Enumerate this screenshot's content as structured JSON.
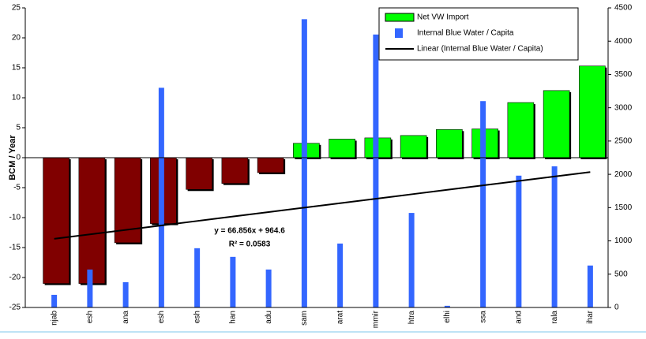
{
  "chart_data": {
    "type": "bar",
    "y_label": "BCM / Year",
    "categories": [
      "njab",
      "esh",
      "ana",
      "esh",
      "esh",
      "han",
      "adu",
      "sam",
      "arat",
      "mmir",
      "htra",
      "elhi",
      "ssa",
      "and",
      "rala",
      "ihar"
    ],
    "series": [
      {
        "name": "Net VW Import",
        "color": "#00ff00",
        "negative_color": "#800000",
        "values": [
          -21,
          -21,
          -14.2,
          -11,
          -5.3,
          -4.3,
          -2.5,
          2.4,
          3.1,
          3.3,
          3.7,
          4.7,
          4.8,
          9.2,
          11.2,
          15.3
        ]
      },
      {
        "name": "Internal Blue Water / Capita",
        "color": "#3366ff",
        "axis": "y2",
        "values": [
          190,
          570,
          380,
          3300,
          890,
          760,
          570,
          4330,
          960,
          4100,
          1420,
          25,
          3100,
          1980,
          2120,
          630
        ]
      },
      {
        "name": "Linear (Internal Blue Water / Capita)",
        "color": "#000000",
        "axis": "y2",
        "line": true,
        "values": [
          1031.5,
          1098.3,
          1165.2,
          1232.0,
          1298.9,
          1365.7,
          1432.6,
          1499.4,
          1566.3,
          1633.2,
          1700.0,
          1766.9,
          1833.7,
          1900.6,
          1967.4,
          2034.3
        ]
      }
    ],
    "annotations": [
      "y = 66.856x + 964.6",
      "R² = 0.0583"
    ],
    "ylim": [
      -25,
      25
    ],
    "yticks": [
      -25,
      -20,
      -15,
      -10,
      -5,
      0,
      5,
      10,
      15,
      20,
      25
    ],
    "y2lim": [
      0,
      4500
    ],
    "y2ticks": [
      0,
      500,
      1000,
      1500,
      2000,
      2500,
      3000,
      3500,
      4000,
      4500
    ],
    "legend": "top-right"
  }
}
